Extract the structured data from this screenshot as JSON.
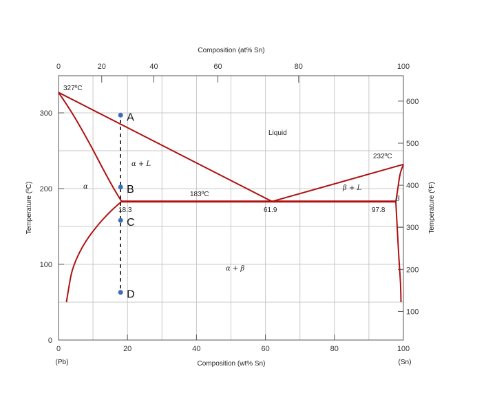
{
  "top_axis": {
    "title": "Composition (at% Sn)",
    "ticks": [
      {
        "value": 0,
        "label": "0"
      },
      {
        "value": 20,
        "label": "20"
      },
      {
        "value": 40,
        "label": "40"
      },
      {
        "value": 60,
        "label": "60"
      },
      {
        "value": 80,
        "label": "80"
      },
      {
        "value": 100,
        "label": "100"
      }
    ]
  },
  "bottom_axis": {
    "title": "Composition (wt% Sn)",
    "ticks": [
      {
        "value": 0,
        "label": "0"
      },
      {
        "value": 20,
        "label": "20"
      },
      {
        "value": 40,
        "label": "40"
      },
      {
        "value": 60,
        "label": "60"
      },
      {
        "value": 80,
        "label": "80"
      },
      {
        "value": 100,
        "label": "100"
      }
    ],
    "left_end_label": "(Pb)",
    "right_end_label": "(Sn)"
  },
  "left_axis": {
    "title": "Temperature (ºC)",
    "ticks": [
      {
        "value": 0,
        "label": "0"
      },
      {
        "value": 100,
        "label": "100"
      },
      {
        "value": 200,
        "label": "200"
      },
      {
        "value": 300,
        "label": "300"
      }
    ]
  },
  "right_axis": {
    "title": "Temperature (ºF)",
    "ticks": [
      {
        "value": 100,
        "label": "100"
      },
      {
        "value": 200,
        "label": "200"
      },
      {
        "value": 300,
        "label": "300"
      },
      {
        "value": 400,
        "label": "400"
      },
      {
        "value": 500,
        "label": "500"
      },
      {
        "value": 600,
        "label": "600"
      }
    ]
  },
  "annotations": {
    "pb_melting": "327ºC",
    "sn_melting": "232ºC",
    "eutectic_temp": "183ºC",
    "alpha_limit": "18.3",
    "eutectic_comp": "61.9",
    "beta_limit": "97.8"
  },
  "phase_regions": {
    "liquid": "Liquid",
    "alpha": "α",
    "alpha_plus_l": "α + L",
    "beta_plus_l": "β + L",
    "beta": "β",
    "alpha_plus_beta": "α + β"
  },
  "points": [
    {
      "id": "A",
      "label": "A",
      "wt": 18,
      "temp": 297
    },
    {
      "id": "B",
      "label": "B",
      "wt": 18,
      "temp": 202
    },
    {
      "id": "C",
      "label": "C",
      "wt": 18,
      "temp": 158
    },
    {
      "id": "D",
      "label": "D",
      "wt": 18,
      "temp": 63
    }
  ],
  "colors": {
    "curves": "#b01010",
    "points": "#3d6db5",
    "grid": "#c8c8c8"
  },
  "chart_data": {
    "type": "phase-diagram",
    "xlabel": "Composition (wt% Sn)",
    "x2label": "Composition (at% Sn)",
    "ylabel": "Temperature (ºC)",
    "y2label": "Temperature (ºF)",
    "xlim": [
      0,
      100
    ],
    "ylim": [
      0,
      340
    ],
    "liquidus": [
      [
        0,
        327
      ],
      [
        61.9,
        183
      ],
      [
        100,
        232
      ]
    ],
    "solidus_alpha": [
      [
        0,
        327
      ],
      [
        4,
        300
      ],
      [
        9,
        260
      ],
      [
        13,
        225
      ],
      [
        16,
        200
      ],
      [
        18.3,
        183
      ]
    ],
    "solvus_alpha": [
      [
        18.3,
        183
      ],
      [
        15,
        170
      ],
      [
        11,
        150
      ],
      [
        7,
        125
      ],
      [
        4,
        95
      ],
      [
        3,
        70
      ],
      [
        2.3,
        50
      ]
    ],
    "solidus_beta": [
      [
        100,
        232
      ],
      [
        99,
        220
      ],
      [
        98.4,
        200
      ],
      [
        97.8,
        183
      ]
    ],
    "solvus_beta": [
      [
        97.8,
        183
      ],
      [
        98.3,
        140
      ],
      [
        98.8,
        100
      ],
      [
        99.2,
        75
      ],
      [
        99.3,
        50
      ]
    ],
    "eutectic_line": [
      [
        18.3,
        183
      ],
      [
        97.8,
        183
      ]
    ],
    "composition_line_wt": 18,
    "grid": true
  }
}
